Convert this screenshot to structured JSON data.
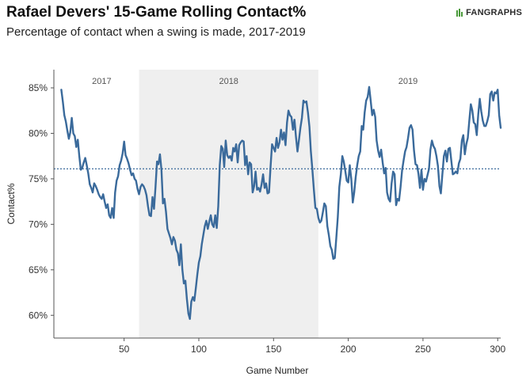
{
  "header": {
    "title": "Rafael Devers' 15-Game Rolling Contact%",
    "subtitle": "Percentage of contact when a swing is made, 2017-2019",
    "logo_text": "FANGRAPHS",
    "logo_icon": "fangraphs-logo-icon"
  },
  "colors": {
    "line": "#3a6a9b",
    "shade": "#efefef",
    "reference": "#3a6a9b",
    "axis": "#555555",
    "logo_accent": "#4a9a3a"
  },
  "chart_data": {
    "type": "line",
    "title": "Rafael Devers' 15-Game Rolling Contact%",
    "subtitle": "Percentage of contact when a swing is made, 2017-2019",
    "xlabel": "Game Number",
    "ylabel": "Contact%",
    "xlim": [
      3,
      302
    ],
    "ylim": [
      57.5,
      87
    ],
    "x_ticks": [
      50,
      100,
      150,
      200,
      250,
      300
    ],
    "y_ticks": [
      60,
      65,
      70,
      75,
      80,
      85
    ],
    "y_tick_labels": [
      "60%",
      "65%",
      "70%",
      "75%",
      "80%",
      "85%"
    ],
    "reference_line": 76.1,
    "shaded_range": [
      60,
      180
    ],
    "regions": [
      {
        "label": "2017",
        "x_center": 35
      },
      {
        "label": "2018",
        "x_center": 120
      },
      {
        "label": "2019",
        "x_center": 240
      }
    ],
    "grid": false,
    "series": [
      {
        "values": [
          [
            8,
            84.8
          ],
          [
            9,
            83.5
          ],
          [
            10,
            82.0
          ],
          [
            11,
            81.3
          ],
          [
            12,
            80.3
          ],
          [
            13,
            79.4
          ],
          [
            14,
            80.1
          ],
          [
            15,
            81.7
          ],
          [
            16,
            80.0
          ],
          [
            17,
            79.7
          ],
          [
            18,
            78.5
          ],
          [
            19,
            79.3
          ],
          [
            20,
            77.5
          ],
          [
            21,
            76.0
          ],
          [
            22,
            76.2
          ],
          [
            23,
            76.8
          ],
          [
            24,
            77.3
          ],
          [
            25,
            76.5
          ],
          [
            26,
            75.6
          ],
          [
            27,
            74.4
          ],
          [
            28,
            74.0
          ],
          [
            29,
            73.5
          ],
          [
            30,
            74.5
          ],
          [
            31,
            74.2
          ],
          [
            32,
            73.8
          ],
          [
            33,
            73.3
          ],
          [
            34,
            73.0
          ],
          [
            35,
            72.8
          ],
          [
            36,
            73.3
          ],
          [
            37,
            72.5
          ],
          [
            38,
            71.8
          ],
          [
            39,
            72.2
          ],
          [
            40,
            71.0
          ],
          [
            41,
            70.7
          ],
          [
            42,
            71.8
          ],
          [
            43,
            70.7
          ],
          [
            44,
            73.5
          ],
          [
            45,
            74.8
          ],
          [
            46,
            75.3
          ],
          [
            47,
            76.5
          ],
          [
            48,
            77.0
          ],
          [
            49,
            77.8
          ],
          [
            50,
            79.1
          ],
          [
            51,
            77.6
          ],
          [
            52,
            77.2
          ],
          [
            53,
            76.7
          ],
          [
            54,
            76.0
          ],
          [
            55,
            75.4
          ],
          [
            56,
            75.6
          ],
          [
            57,
            75.0
          ],
          [
            58,
            74.8
          ],
          [
            59,
            73.9
          ],
          [
            60,
            73.3
          ],
          [
            61,
            74.1
          ],
          [
            62,
            74.4
          ],
          [
            63,
            74.2
          ],
          [
            64,
            73.8
          ],
          [
            65,
            73.2
          ],
          [
            66,
            72.0
          ],
          [
            67,
            71.0
          ],
          [
            68,
            70.9
          ],
          [
            69,
            73.0
          ],
          [
            70,
            71.7
          ],
          [
            71,
            74.1
          ],
          [
            72,
            76.9
          ],
          [
            73,
            76.6
          ],
          [
            74,
            77.7
          ],
          [
            75,
            76.0
          ],
          [
            76,
            72.3
          ],
          [
            77,
            72.8
          ],
          [
            78,
            71.4
          ],
          [
            79,
            69.5
          ],
          [
            80,
            69.0
          ],
          [
            81,
            68.5
          ],
          [
            82,
            67.8
          ],
          [
            83,
            68.6
          ],
          [
            84,
            68.2
          ],
          [
            85,
            67.2
          ],
          [
            86,
            66.8
          ],
          [
            87,
            65.5
          ],
          [
            88,
            67.8
          ],
          [
            89,
            65.0
          ],
          [
            90,
            63.5
          ],
          [
            91,
            63.8
          ],
          [
            92,
            61.8
          ],
          [
            93,
            60.2
          ],
          [
            94,
            59.6
          ],
          [
            95,
            61.5
          ],
          [
            96,
            62.0
          ],
          [
            97,
            61.6
          ],
          [
            98,
            63.0
          ],
          [
            99,
            64.5
          ],
          [
            100,
            65.8
          ],
          [
            101,
            66.5
          ],
          [
            102,
            67.8
          ],
          [
            103,
            68.8
          ],
          [
            104,
            69.8
          ],
          [
            105,
            70.4
          ],
          [
            106,
            69.5
          ],
          [
            107,
            70.3
          ],
          [
            108,
            71.0
          ],
          [
            109,
            70.0
          ],
          [
            110,
            69.7
          ],
          [
            111,
            71.0
          ],
          [
            112,
            69.6
          ],
          [
            113,
            72.0
          ],
          [
            114,
            76.5
          ],
          [
            115,
            78.6
          ],
          [
            116,
            78.3
          ],
          [
            117,
            76.3
          ],
          [
            118,
            79.2
          ],
          [
            119,
            77.6
          ],
          [
            120,
            77.3
          ],
          [
            121,
            77.5
          ],
          [
            122,
            77.0
          ],
          [
            123,
            78.4
          ],
          [
            124,
            78.0
          ],
          [
            125,
            78.8
          ],
          [
            126,
            76.8
          ],
          [
            127,
            78.7
          ],
          [
            128,
            79.0
          ],
          [
            129,
            79.2
          ],
          [
            130,
            79.1
          ],
          [
            131,
            76.5
          ],
          [
            132,
            77.5
          ],
          [
            133,
            75.5
          ],
          [
            134,
            76.8
          ],
          [
            135,
            76.6
          ],
          [
            136,
            73.5
          ],
          [
            137,
            74.2
          ],
          [
            138,
            75.8
          ],
          [
            139,
            73.8
          ],
          [
            140,
            74.0
          ],
          [
            141,
            73.6
          ],
          [
            142,
            74.4
          ],
          [
            143,
            75.5
          ],
          [
            144,
            74.0
          ],
          [
            145,
            74.5
          ],
          [
            146,
            73.4
          ],
          [
            147,
            73.5
          ],
          [
            148,
            76.3
          ],
          [
            149,
            78.8
          ],
          [
            150,
            78.4
          ],
          [
            151,
            78.0
          ],
          [
            152,
            79.5
          ],
          [
            153,
            78.4
          ],
          [
            154,
            79.0
          ],
          [
            155,
            80.4
          ],
          [
            156,
            79.3
          ],
          [
            157,
            80.1
          ],
          [
            158,
            78.7
          ],
          [
            159,
            81.2
          ],
          [
            160,
            82.5
          ],
          [
            161,
            82.0
          ],
          [
            162,
            81.8
          ],
          [
            163,
            80.4
          ],
          [
            164,
            81.5
          ],
          [
            165,
            79.6
          ],
          [
            166,
            78.0
          ],
          [
            167,
            79.3
          ],
          [
            168,
            80.6
          ],
          [
            169,
            81.7
          ],
          [
            170,
            83.6
          ],
          [
            171,
            83.4
          ],
          [
            172,
            83.5
          ],
          [
            173,
            82.3
          ],
          [
            174,
            80.7
          ],
          [
            175,
            78.0
          ],
          [
            176,
            76.0
          ],
          [
            177,
            73.8
          ],
          [
            178,
            71.8
          ],
          [
            179,
            71.7
          ],
          [
            180,
            70.7
          ],
          [
            181,
            70.2
          ],
          [
            182,
            70.4
          ],
          [
            183,
            71.3
          ],
          [
            184,
            72.3
          ],
          [
            185,
            72.0
          ],
          [
            186,
            69.8
          ],
          [
            187,
            68.8
          ],
          [
            188,
            67.6
          ],
          [
            189,
            67.2
          ],
          [
            190,
            66.2
          ],
          [
            191,
            66.3
          ],
          [
            192,
            68.5
          ],
          [
            193,
            70.8
          ],
          [
            194,
            74.1
          ],
          [
            195,
            75.5
          ],
          [
            196,
            77.5
          ],
          [
            197,
            76.9
          ],
          [
            198,
            75.9
          ],
          [
            199,
            74.8
          ],
          [
            200,
            74.6
          ],
          [
            201,
            76.5
          ],
          [
            202,
            75.0
          ],
          [
            203,
            72.4
          ],
          [
            204,
            73.5
          ],
          [
            205,
            75.2
          ],
          [
            206,
            76.5
          ],
          [
            207,
            77.5
          ],
          [
            208,
            78.0
          ],
          [
            209,
            80.8
          ],
          [
            210,
            80.4
          ],
          [
            211,
            82.3
          ],
          [
            212,
            83.6
          ],
          [
            213,
            84.0
          ],
          [
            214,
            85.1
          ],
          [
            215,
            83.6
          ],
          [
            216,
            82.0
          ],
          [
            217,
            82.6
          ],
          [
            218,
            81.8
          ],
          [
            219,
            79.2
          ],
          [
            220,
            78.1
          ],
          [
            221,
            77.4
          ],
          [
            222,
            78.2
          ],
          [
            223,
            76.8
          ],
          [
            224,
            75.6
          ],
          [
            225,
            76.2
          ],
          [
            226,
            73.5
          ],
          [
            227,
            72.8
          ],
          [
            228,
            72.5
          ],
          [
            229,
            74.5
          ],
          [
            230,
            75.8
          ],
          [
            231,
            75.5
          ],
          [
            232,
            72.1
          ],
          [
            233,
            72.8
          ],
          [
            234,
            72.6
          ],
          [
            235,
            74.1
          ],
          [
            236,
            75.9
          ],
          [
            237,
            77.0
          ],
          [
            238,
            78.0
          ],
          [
            239,
            78.5
          ],
          [
            240,
            79.5
          ],
          [
            241,
            80.6
          ],
          [
            242,
            80.9
          ],
          [
            243,
            80.4
          ],
          [
            244,
            78.1
          ],
          [
            245,
            76.6
          ],
          [
            246,
            76.5
          ],
          [
            247,
            75.5
          ],
          [
            248,
            74.0
          ],
          [
            249,
            76.0
          ],
          [
            250,
            73.8
          ],
          [
            251,
            75.0
          ],
          [
            252,
            74.7
          ],
          [
            253,
            75.4
          ],
          [
            254,
            76.1
          ],
          [
            255,
            78.2
          ],
          [
            256,
            79.2
          ],
          [
            257,
            78.6
          ],
          [
            258,
            78.3
          ],
          [
            259,
            77.5
          ],
          [
            260,
            76.4
          ],
          [
            261,
            74.2
          ],
          [
            262,
            73.4
          ],
          [
            263,
            75.5
          ],
          [
            264,
            77.5
          ],
          [
            265,
            78.1
          ],
          [
            266,
            76.9
          ],
          [
            267,
            78.3
          ],
          [
            268,
            78.4
          ],
          [
            269,
            76.9
          ],
          [
            270,
            75.5
          ],
          [
            271,
            75.6
          ],
          [
            272,
            75.8
          ],
          [
            273,
            75.6
          ],
          [
            274,
            76.7
          ],
          [
            275,
            77.2
          ],
          [
            276,
            79.2
          ],
          [
            277,
            79.8
          ],
          [
            278,
            77.7
          ],
          [
            279,
            78.8
          ],
          [
            280,
            79.5
          ],
          [
            281,
            81.4
          ],
          [
            282,
            83.2
          ],
          [
            283,
            82.5
          ],
          [
            284,
            81.2
          ],
          [
            285,
            81.0
          ],
          [
            286,
            79.8
          ],
          [
            287,
            82.1
          ],
          [
            288,
            83.8
          ],
          [
            289,
            82.4
          ],
          [
            290,
            81.4
          ],
          [
            291,
            80.8
          ],
          [
            292,
            80.8
          ],
          [
            293,
            81.3
          ],
          [
            294,
            82.0
          ],
          [
            295,
            84.3
          ],
          [
            296,
            84.6
          ],
          [
            297,
            83.6
          ],
          [
            298,
            84.5
          ],
          [
            299,
            84.4
          ],
          [
            300,
            84.8
          ],
          [
            301,
            82.0
          ],
          [
            302,
            80.6
          ]
        ]
      }
    ]
  }
}
